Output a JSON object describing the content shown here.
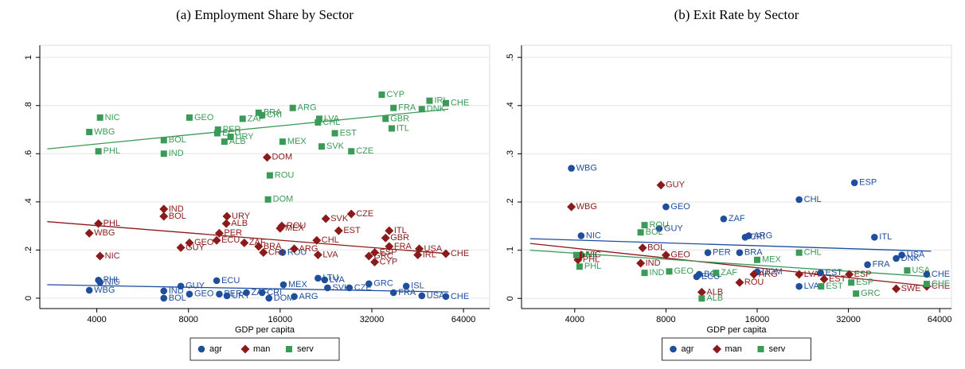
{
  "chart_data": [
    {
      "type": "scatter",
      "title": "(a) Employment Share by Sector",
      "x_label": "GDP per capita",
      "xscale": "log",
      "xlim": [
        2600,
        78000
      ],
      "xticks": [
        4000,
        8000,
        16000,
        32000,
        64000
      ],
      "ylim": [
        -0.043,
        1.05
      ],
      "yticks": [
        0,
        {
          "value": 0.2,
          "label": ".2"
        },
        {
          "value": 0.4,
          "label": ".4"
        },
        {
          "value": 0.6,
          "label": ".6"
        },
        {
          "value": 0.8,
          "label": ".8"
        },
        1
      ],
      "grid": true,
      "series": [
        {
          "name": "agr",
          "color": "#1f4e9c",
          "marker": "circle",
          "labels": [
            "PHL",
            "WBG",
            "NIC",
            "IND",
            "BOL",
            "GUY",
            "GEO",
            "ECU",
            "PER",
            "URY",
            "ZAF",
            "CRI",
            "ROU",
            "MEX",
            "DOM",
            "ARG",
            "LTU",
            "LVA",
            "SVK",
            "CZE",
            "GRC",
            "ISL",
            "FRA",
            "USA",
            "CHE"
          ],
          "x": [
            4050,
            3780,
            4100,
            6640,
            6640,
            7550,
            8060,
            9900,
            10100,
            10700,
            12400,
            13960,
            16300,
            16400,
            14700,
            17800,
            21300,
            22400,
            22900,
            27000,
            31300,
            41500,
            37700,
            46700,
            56000
          ],
          "values": [
            0.075,
            0.033,
            0.066,
            0.03,
            0.0,
            0.05,
            0.017,
            0.073,
            0.017,
            0.01,
            0.023,
            0.023,
            0.19,
            0.056,
            0.0,
            0.007,
            0.083,
            0.076,
            0.043,
            0.043,
            0.06,
            0.05,
            0.023,
            0.01,
            0.007
          ]
        },
        {
          "name": "man",
          "color": "#8b1a1a",
          "marker": "diamond",
          "labels": [
            "PHL",
            "WBG",
            "NIC",
            "IND",
            "BOL",
            "GUY",
            "GEO",
            "ECU",
            "PER",
            "URY",
            "ALB",
            "ZAF",
            "BRA",
            "CRI",
            "ROU",
            "MEX",
            "DOM",
            "ARG",
            "LVA",
            "SVK",
            "CHL",
            "EST",
            "CZE",
            "ITL",
            "GBR",
            "FRA",
            "CYP",
            "GRC",
            "ESP",
            "USA",
            "IRL",
            "CHE"
          ],
          "x": [
            4050,
            3780,
            4100,
            6640,
            6640,
            7550,
            8060,
            9900,
            10100,
            10700,
            10650,
            12200,
            13600,
            14100,
            16200,
            16000,
            14500,
            17800,
            21300,
            22600,
            21100,
            24900,
            27400,
            36500,
            35500,
            36500,
            32700,
            31300,
            32700,
            45800,
            45300,
            56000
          ],
          "values": [
            0.31,
            0.27,
            0.175,
            0.37,
            0.34,
            0.21,
            0.23,
            0.24,
            0.27,
            0.34,
            0.31,
            0.23,
            0.215,
            0.19,
            0.3,
            0.29,
            0.585,
            0.205,
            0.18,
            0.33,
            0.24,
            0.28,
            0.35,
            0.28,
            0.25,
            0.215,
            0.15,
            0.175,
            0.19,
            0.205,
            0.18,
            0.185
          ]
        },
        {
          "name": "serv",
          "color": "#3b9a57",
          "marker": "square",
          "labels": [
            "NIC",
            "WBG",
            "PHL",
            "BOL",
            "IND",
            "GEO",
            "ZAF",
            "BRA",
            "CRI",
            "PER",
            "ECU",
            "ALB",
            "URY",
            "ARG",
            "MEX",
            "CHL",
            "LVA",
            "EST",
            "SVK",
            "CZE",
            "CYP",
            "GBR",
            "ITL",
            "FRA",
            "CHE",
            "IRL",
            "DNK",
            "ROU",
            "DOM"
          ],
          "x": [
            4100,
            3780,
            4050,
            6640,
            6640,
            8060,
            12050,
            13600,
            13960,
            10000,
            9950,
            10500,
            11000,
            17600,
            16300,
            21300,
            21500,
            24200,
            21900,
            27400,
            34500,
            35500,
            37200,
            37700,
            56000,
            49500,
            46700,
            14800,
            14600
          ],
          "values": [
            0.75,
            0.69,
            0.61,
            0.656,
            0.6,
            0.75,
            0.745,
            0.77,
            0.76,
            0.7,
            0.685,
            0.65,
            0.67,
            0.79,
            0.65,
            0.73,
            0.745,
            0.685,
            0.63,
            0.61,
            0.845,
            0.745,
            0.705,
            0.79,
            0.81,
            0.82,
            0.785,
            0.51,
            0.41
          ]
        }
      ],
      "fits": [
        {
          "color": "#1f4e9c",
          "x": [
            2750,
            57100
          ],
          "values": [
            0.056,
            0.026
          ]
        },
        {
          "color": "#8b1a1a",
          "x": [
            2750,
            57100
          ],
          "values": [
            0.318,
            0.185
          ]
        },
        {
          "color": "#3b9a57",
          "x": [
            2750,
            57100
          ],
          "values": [
            0.62,
            0.785
          ]
        }
      ]
    },
    {
      "type": "scatter",
      "title": "(b) Exit Rate by Sector",
      "x_label": "GDP per capita",
      "xscale": "log",
      "xlim": [
        2670,
        70000
      ],
      "xticks": [
        4000,
        8000,
        16000,
        32000,
        64000
      ],
      "ylim": [
        -0.021,
        0.525
      ],
      "yticks": [
        0,
        {
          "value": 0.1,
          "label": ".1"
        },
        {
          "value": 0.2,
          "label": ".2"
        },
        {
          "value": 0.3,
          "label": ".3"
        },
        {
          "value": 0.4,
          "label": ".4"
        },
        {
          "value": 0.5,
          "label": ".5"
        }
      ],
      "grid": true,
      "series": [
        {
          "name": "agr",
          "color": "#1f4e9c",
          "marker": "circle",
          "labels": [
            "WBG",
            "NIC",
            "GUY",
            "GEO",
            "ZAF",
            "CRI",
            "ARG",
            "BRA",
            "PER",
            "CHL",
            "ESP",
            "ITL",
            "EST",
            "ECU",
            "BOL",
            "DOM",
            "FRA",
            "USA",
            "DNK",
            "CHE",
            "LVA"
          ],
          "x": [
            3900,
            4200,
            7600,
            8000,
            12400,
            14600,
            15000,
            14000,
            11000,
            22000,
            33500,
            39000,
            25900,
            10100,
            10300,
            16000,
            37000,
            48000,
            46000,
            58000,
            22000
          ],
          "values": [
            0.27,
            0.13,
            0.145,
            0.19,
            0.165,
            0.127,
            0.13,
            0.095,
            0.095,
            0.205,
            0.24,
            0.127,
            0.053,
            0.045,
            0.05,
            0.055,
            0.07,
            0.09,
            0.083,
            0.05,
            0.025
          ]
        },
        {
          "name": "man",
          "color": "#8b1a1a",
          "marker": "diamond",
          "labels": [
            "GUY",
            "WBG",
            "NIC",
            "PHL",
            "BOL",
            "IND",
            "GEO",
            "ALB",
            "ROU",
            "ARG",
            "ESP",
            "SWE",
            "CHE",
            "LVA",
            "EST"
          ],
          "x": [
            7700,
            3900,
            4200,
            4100,
            6700,
            6600,
            8000,
            10500,
            14000,
            15600,
            32200,
            46000,
            58000,
            22000,
            26600
          ],
          "values": [
            0.235,
            0.19,
            0.09,
            0.08,
            0.105,
            0.073,
            0.09,
            0.013,
            0.033,
            0.05,
            0.05,
            0.02,
            0.025,
            0.05,
            0.04
          ]
        },
        {
          "name": "serv",
          "color": "#3b9a57",
          "marker": "square",
          "labels": [
            "ROU",
            "BOL",
            "IND",
            "GEO",
            "PHL",
            "NIC",
            "ALB",
            "ZAF",
            "CHL",
            "MEX",
            "GRC",
            "ESP",
            "USA",
            "CHE",
            "EST"
          ],
          "x": [
            6800,
            6600,
            6800,
            8200,
            4150,
            4050,
            10500,
            11700,
            22000,
            16000,
            33900,
            32700,
            50000,
            58000,
            26000
          ],
          "values": [
            0.152,
            0.137,
            0.053,
            0.056,
            0.066,
            0.09,
            0.0,
            0.053,
            0.095,
            0.08,
            0.01,
            0.033,
            0.058,
            0.03,
            0.025
          ]
        }
      ],
      "fits": [
        {
          "color": "#1f4e9c",
          "x": [
            2850,
            60000
          ],
          "values": [
            0.124,
            0.098
          ]
        },
        {
          "color": "#8b1a1a",
          "x": [
            2850,
            60000
          ],
          "values": [
            0.114,
            0.025
          ]
        },
        {
          "color": "#3b9a57",
          "x": [
            2850,
            60000
          ],
          "values": [
            0.1,
            0.045
          ]
        }
      ]
    }
  ]
}
